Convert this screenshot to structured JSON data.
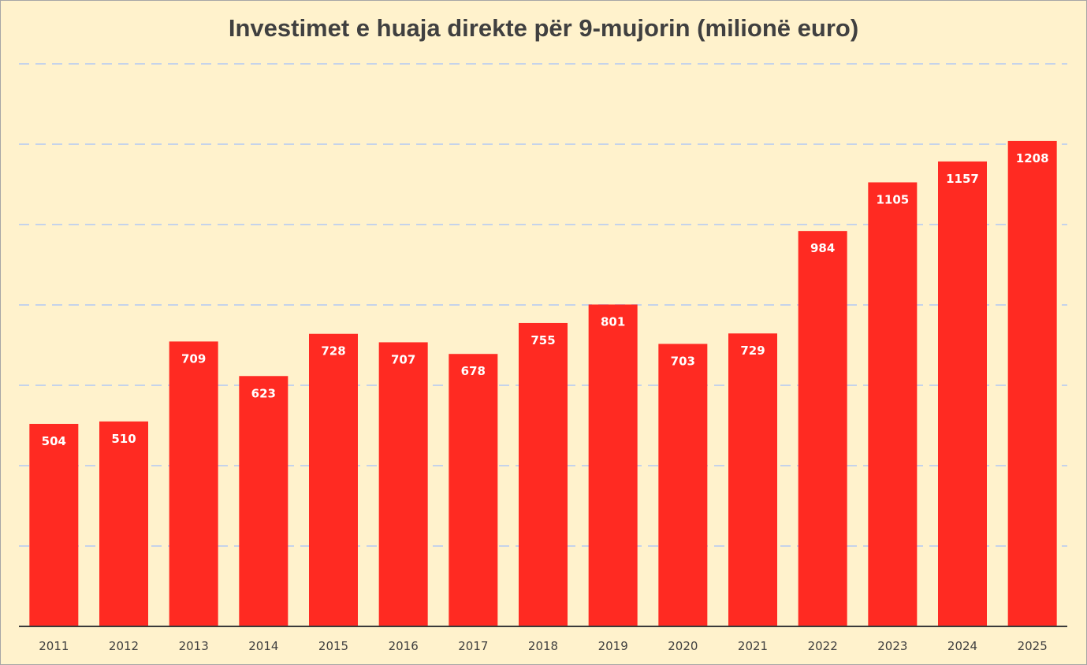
{
  "chart_data": {
    "type": "bar",
    "title": "Investimet e huaja direkte për 9-mujorin (milionë euro)",
    "categories": [
      "2011",
      "2012",
      "2013",
      "2014",
      "2015",
      "2016",
      "2017",
      "2018",
      "2019",
      "2020",
      "2021",
      "2022",
      "2023",
      "2024",
      "2025"
    ],
    "values": [
      504,
      510,
      709,
      623,
      728,
      707,
      678,
      755,
      801,
      703,
      729,
      984,
      1105,
      1157,
      1208
    ],
    "xlabel": "",
    "ylabel": "",
    "ylim": [
      0,
      1400
    ],
    "grid": true,
    "bar_color": "#ff2a22",
    "label_color": "#ffffff",
    "background": "#fff2cc"
  }
}
